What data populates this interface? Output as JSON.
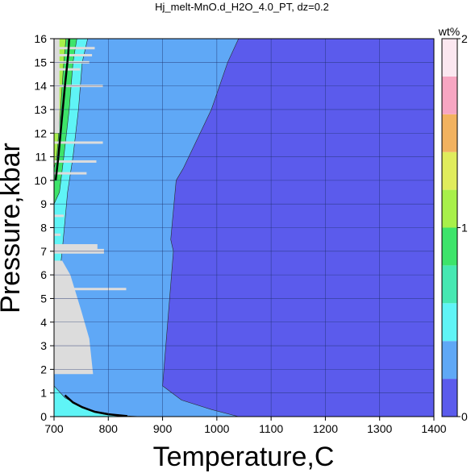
{
  "chart_data": {
    "type": "heatmap",
    "title": "Hj_melt-MnO.d_H2O_4.0_PT, dz=0.2",
    "xlabel": "Temperature,C",
    "ylabel": "Pressure,kbar",
    "xlim": [
      700,
      1400
    ],
    "ylim": [
      0,
      16
    ],
    "x_ticks": [
      700,
      800,
      900,
      1000,
      1100,
      1200,
      1300,
      1400
    ],
    "y_ticks": [
      0,
      1,
      2,
      3,
      4,
      5,
      6,
      7,
      8,
      9,
      10,
      11,
      12,
      13,
      14,
      15,
      16
    ],
    "grid": true,
    "colorbar": {
      "label": "wt%",
      "range": [
        0,
        2
      ],
      "ticks": [
        0,
        1,
        2
      ],
      "levels": [
        {
          "from": 0.0,
          "to": 0.2,
          "color": "#5b5bec"
        },
        {
          "from": 0.2,
          "to": 0.4,
          "color": "#5fa8f6"
        },
        {
          "from": 0.4,
          "to": 0.6,
          "color": "#5ff4f6"
        },
        {
          "from": 0.6,
          "to": 0.8,
          "color": "#46e8b2"
        },
        {
          "from": 0.8,
          "to": 1.0,
          "color": "#3de46a"
        },
        {
          "from": 1.0,
          "to": 1.2,
          "color": "#a8f04a"
        },
        {
          "from": 1.2,
          "to": 1.4,
          "color": "#e0ec5c"
        },
        {
          "from": 1.4,
          "to": 1.6,
          "color": "#f2b25f"
        },
        {
          "from": 1.6,
          "to": 1.8,
          "color": "#f7a6c2"
        },
        {
          "from": 1.8,
          "to": 2.0,
          "color": "#fbe7f0"
        }
      ]
    },
    "regions": [
      {
        "name": "wt% 0.2-0.4",
        "level_color": "#5fa8f6",
        "polygon": [
          [
            700,
            16
          ],
          [
            1040,
            16
          ],
          [
            1040,
            0
          ],
          [
            700,
            0
          ]
        ]
      },
      {
        "name": "wt% 0-0.2",
        "level_color": "#5b5bec",
        "polygon": [
          [
            1040,
            16
          ],
          [
            1400,
            16
          ],
          [
            1400,
            0
          ],
          [
            1040,
            0
          ],
          [
            990,
            0.3
          ],
          [
            935,
            0.7
          ],
          [
            900,
            1.3
          ],
          [
            920,
            7.0
          ],
          [
            915,
            7.5
          ],
          [
            925,
            10.0
          ],
          [
            938,
            10.5
          ],
          [
            990,
            13.0
          ],
          [
            1020,
            15.0
          ]
        ]
      },
      {
        "name": "wt% 0.4-0.6",
        "level_color": "#5ff4f6",
        "polygon": [
          [
            700,
            16
          ],
          [
            762,
            16
          ],
          [
            752,
            15
          ],
          [
            745,
            13
          ],
          [
            735,
            11
          ],
          [
            725,
            9.5
          ],
          [
            715,
            7.0
          ],
          [
            705,
            5.0
          ],
          [
            700,
            4.5
          ]
        ]
      },
      {
        "name": "wt% 0.4-0.6 low-P band",
        "level_color": "#5ff4f6",
        "polygon": [
          [
            700,
            1.3
          ],
          [
            720,
            0.8
          ],
          [
            760,
            0.3
          ],
          [
            820,
            0.05
          ],
          [
            860,
            0
          ],
          [
            700,
            0
          ]
        ]
      },
      {
        "name": "wt% 0.6-1.0",
        "level_color": "#3de46a",
        "polygon": [
          [
            700,
            16
          ],
          [
            742,
            16
          ],
          [
            735,
            15
          ],
          [
            728,
            13
          ],
          [
            718,
            11
          ],
          [
            710,
            9.5
          ],
          [
            700,
            9.0
          ]
        ]
      },
      {
        "name": "wt% 1.0-1.4",
        "level_color": "#a8f04a",
        "polygon": [
          [
            700,
            16
          ],
          [
            722,
            16
          ],
          [
            718,
            15
          ],
          [
            712,
            13
          ],
          [
            705,
            11
          ],
          [
            700,
            10.5
          ]
        ]
      }
    ],
    "no_data_fill": "#dcdcdc",
    "no_data_regions": [
      [
        [
          700,
          6.6
        ],
        [
          715,
          6.6
        ],
        [
          730,
          6.0
        ],
        [
          750,
          4.5
        ],
        [
          765,
          3.3
        ],
        [
          772,
          1.8
        ],
        [
          700,
          1.8
        ]
      ],
      [
        [
          700,
          7.3
        ],
        [
          780,
          7.3
        ],
        [
          780,
          7.1
        ],
        [
          792,
          7.1
        ],
        [
          792,
          6.9
        ],
        [
          700,
          6.9
        ]
      ],
      [
        [
          700,
          16
        ],
        [
          710,
          16
        ],
        [
          710,
          12
        ],
        [
          700,
          12
        ]
      ]
    ],
    "no_data_streaks": [
      {
        "y": 15.6,
        "x0": 700,
        "x1": 775
      },
      {
        "y": 15.3,
        "x0": 700,
        "x1": 770
      },
      {
        "y": 15.0,
        "x0": 700,
        "x1": 765
      },
      {
        "y": 14.7,
        "x0": 700,
        "x1": 748
      },
      {
        "y": 14.0,
        "x0": 700,
        "x1": 790
      },
      {
        "y": 11.6,
        "x0": 700,
        "x1": 790
      },
      {
        "y": 10.8,
        "x0": 700,
        "x1": 778
      },
      {
        "y": 10.3,
        "x0": 700,
        "x1": 760
      },
      {
        "y": 8.5,
        "x0": 700,
        "x1": 718
      },
      {
        "y": 7.7,
        "x0": 700,
        "x1": 712
      },
      {
        "y": 5.4,
        "x0": 725,
        "x1": 833
      }
    ],
    "dark_streaks": [
      {
        "points": [
          [
            703,
            10.0
          ],
          [
            708,
            11.0
          ],
          [
            714,
            12.5
          ],
          [
            720,
            14.0
          ],
          [
            726,
            15.3
          ],
          [
            728,
            16.0
          ]
        ],
        "color": "#000000"
      },
      {
        "points": [
          [
            720,
            0.9
          ],
          [
            735,
            0.6
          ],
          [
            752,
            0.4
          ],
          [
            775,
            0.2
          ],
          [
            800,
            0.1
          ],
          [
            835,
            0.02
          ]
        ],
        "color": "#000000"
      }
    ]
  }
}
